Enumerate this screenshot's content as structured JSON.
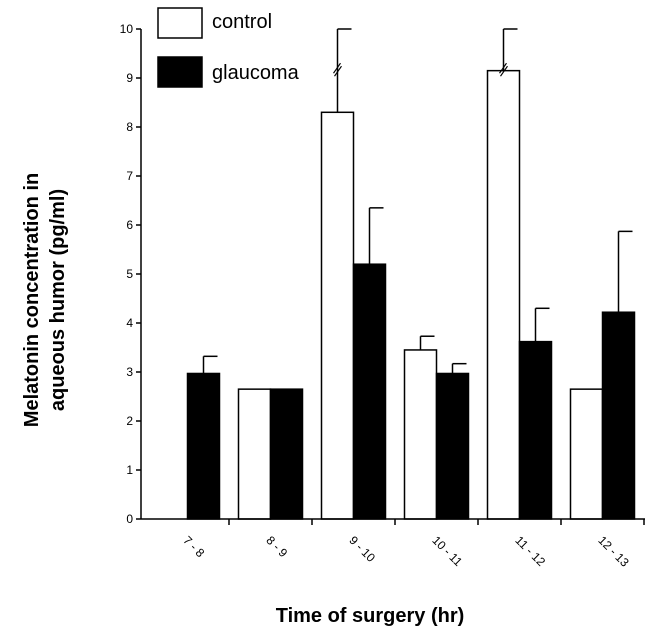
{
  "chart_data": {
    "type": "bar",
    "xlabel": "Time of surgery (hr)",
    "ylabel_lines": [
      "Melatonin concentration in",
      "aqueous humor (pg/ml)"
    ],
    "ylim": [
      0,
      10
    ],
    "y_ticks": [
      "0",
      "1",
      "2",
      "3",
      "4",
      "5",
      "6",
      "7",
      "8",
      "9",
      "10"
    ],
    "categories": [
      "7 - 8",
      "8 - 9",
      "9 - 10",
      "10 - 11",
      "11 - 12",
      "12 - 13"
    ],
    "legend_position": "top-left",
    "grid": false,
    "series": [
      {
        "name": "control",
        "color": "#ffffff",
        "values": [
          null,
          2.65,
          8.3,
          3.45,
          9.15,
          2.65
        ],
        "errors": [
          null,
          0,
          1.7,
          0.28,
          0.85,
          0
        ]
      },
      {
        "name": "glaucoma",
        "color": "#000000",
        "values": [
          2.97,
          2.65,
          5.2,
          2.97,
          3.62,
          4.22
        ],
        "errors": [
          0.35,
          0,
          1.15,
          0.2,
          0.68,
          1.65
        ]
      }
    ],
    "axis_break_marks": [
      "9 - 10",
      "11 - 12"
    ]
  }
}
